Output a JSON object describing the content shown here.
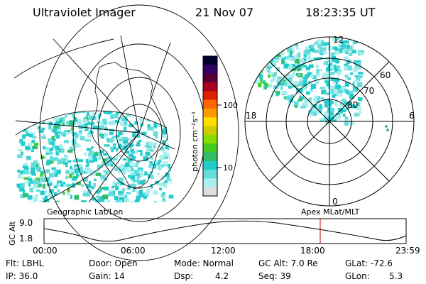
{
  "header": {
    "instrument": "Ultraviolet Imager",
    "date": "21 Nov 07",
    "time": "18:23:35 UT"
  },
  "colorbar": {
    "unit_label": "photon cm⁻²s⁻¹",
    "tick_labels": [
      "100",
      "10"
    ],
    "colors": [
      "#000033",
      "#330066",
      "#550033",
      "#aa0022",
      "#dd2200",
      "#ff6600",
      "#ff9900",
      "#ffdd00",
      "#cccc00",
      "#88dd00",
      "#44cc22",
      "#33bb66",
      "#22cccc",
      "#66dddd",
      "#aaeeee",
      "#dddddd"
    ]
  },
  "geo_map": {
    "label": "Geographic Lat/Lon",
    "aurora_colors": [
      "#22cccc",
      "#66dddd",
      "#aaeeee",
      "#33bb66",
      "#44cc22"
    ]
  },
  "polar_plot": {
    "label": "Apex MLat/MLT",
    "lat_labels": [
      "80",
      "70",
      "60"
    ],
    "mlt_labels": [
      "12",
      "18",
      "6",
      "0"
    ]
  },
  "timeline": {
    "ylabel": "GC Alt",
    "ytick_labels": [
      "9.0",
      "1.8"
    ],
    "xtick_labels": [
      "00:00",
      "06:00",
      "12:00",
      "18:00",
      "23:59"
    ],
    "marker_color": "#cc0000"
  },
  "status": {
    "flt_label": "Flt: LBHL",
    "ip_label": "IP: 36.0",
    "door_label": "Door: Open",
    "gain_label": "Gain: 14",
    "mode_label": "Mode: Normal",
    "dsp_label": "Dsp:",
    "dsp_value": "4.2",
    "gcalt_label": "GC Alt: 7.0 Re",
    "seq_label": "Seq: 39",
    "glat_label": "GLat: -72.6",
    "glon_label": "GLon:",
    "glon_value": "5.3"
  }
}
